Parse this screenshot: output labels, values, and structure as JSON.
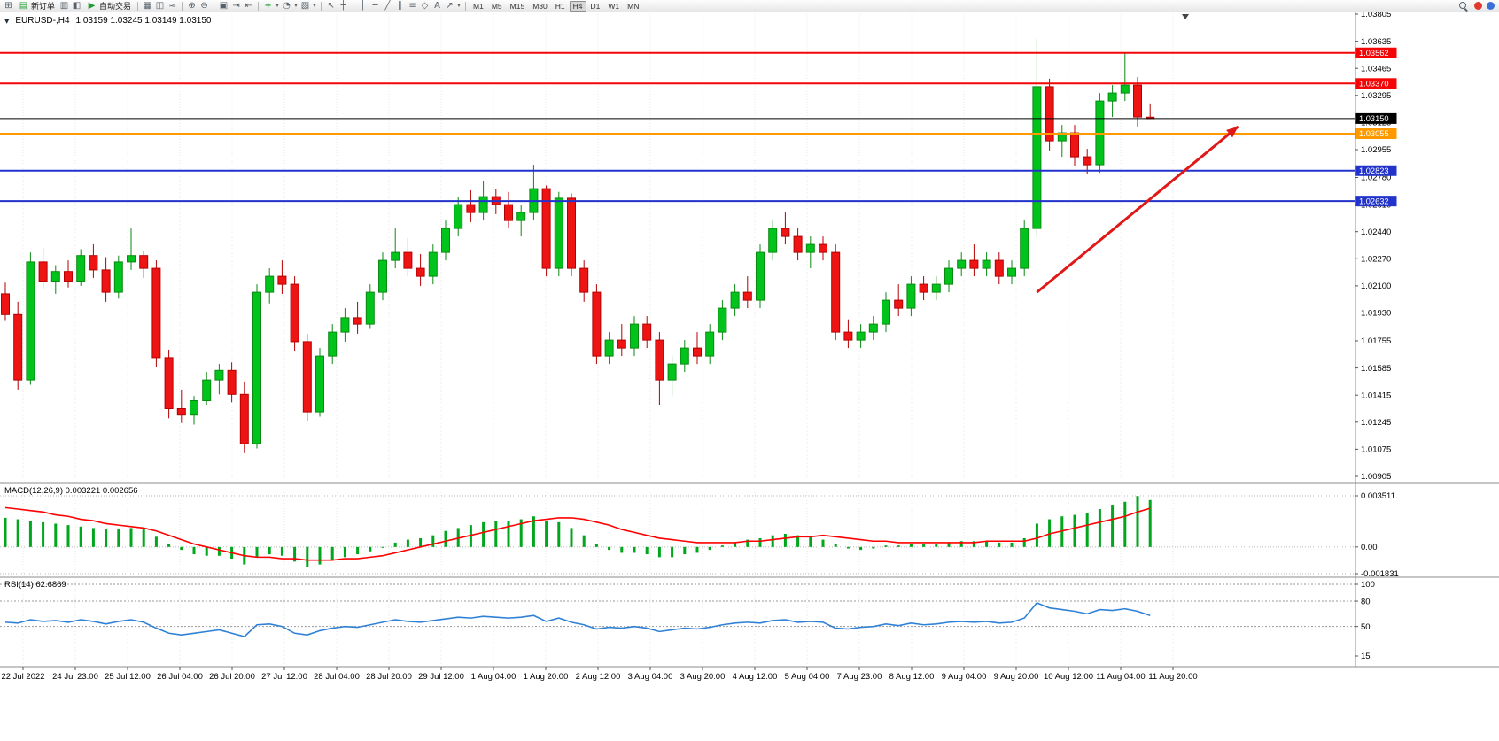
{
  "toolbar": {
    "new_order_label": "新订单",
    "autotrading_label": "自动交易",
    "timeframes": [
      "M1",
      "M5",
      "M15",
      "M30",
      "H1",
      "H4",
      "D1",
      "W1",
      "MN"
    ],
    "active_timeframe": "H4",
    "icons": {
      "new_chart": "⊞",
      "new_order": "▤",
      "market_watch": "▥",
      "navigator": "◧",
      "autotrading_play": "▶",
      "bar_chart": "▦",
      "candlestick": "◫",
      "line_chart": "≈",
      "zoom_in": "⊕",
      "zoom_out": "⊖",
      "tile_windows": "▣",
      "auto_scroll": "⇥",
      "chart_shift": "⇤",
      "indicators": "+",
      "periods": "◔",
      "templates": "▧",
      "cursor": "↖",
      "crosshair": "┼",
      "vertical_line": "│",
      "horizontal_line": "─",
      "trendline": "╱",
      "channel": "∥",
      "fibonacci": "≡",
      "shapes": "◇",
      "text": "A",
      "arrows": "↗",
      "dropdown_caret": "▾"
    }
  },
  "chart": {
    "header_caret": "▼",
    "symbol_period": "EURUSD-,H4",
    "ohlc": "1.03159 1.03245 1.03149 1.03150"
  },
  "macd_panel": {
    "label": "MACD(12,26,9) 0.003221 0.002656",
    "axis_labels": [
      "0.003511",
      "0.00",
      "-0.001831"
    ]
  },
  "rsi_panel": {
    "label": "RSI(14) 62.6869",
    "axis_labels": [
      "100",
      "80",
      "50",
      "15"
    ]
  },
  "price_lines": [
    {
      "price": 1.03562,
      "label": "1.03562",
      "color": "#f40606",
      "width": 2
    },
    {
      "price": 1.0337,
      "label": "1.03370",
      "color": "#f40606",
      "width": 2
    },
    {
      "price": 1.0315,
      "label": "1.03150",
      "color": "#000000",
      "width": 1
    },
    {
      "price": 1.03055,
      "label": "1.03055",
      "color": "#ff9900",
      "width": 2
    },
    {
      "price": 1.02823,
      "label": "1.02823",
      "color": "#2233cc",
      "width": 2
    },
    {
      "price": 1.02632,
      "label": "1.02632",
      "color": "#2233cc",
      "width": 2
    }
  ],
  "colors": {
    "candle_up": "#00c31c",
    "candle_up_border": "#0b8a12",
    "candle_down": "#ee1414",
    "candle_down_border": "#b40000",
    "macd_histogram": "#00a61c",
    "macd_signal": "#ff0000",
    "rsi_line": "#2f81d6",
    "arrow": "#e01818"
  },
  "chart_data": {
    "type": "candlestick",
    "symbol": "EURUSD-",
    "timeframe": "H4",
    "title": "EURUSD-,H4",
    "ohlc_current": {
      "open": 1.03159,
      "high": 1.03245,
      "low": 1.03149,
      "close": 1.0315
    },
    "ylim": [
      1.00905,
      1.03805
    ],
    "price_axis_labels": [
      "1.03805",
      "1.03635",
      "1.03465",
      "1.03295",
      "1.03125",
      "1.02955",
      "1.02780",
      "1.02610",
      "1.02440",
      "1.02270",
      "1.02100",
      "1.01930",
      "1.01755",
      "1.01585",
      "1.01415",
      "1.01245",
      "1.01075",
      "1.00905"
    ],
    "time_labels": [
      "22 Jul 2022",
      "24 Jul 23:00",
      "25 Jul 12:00",
      "26 Jul 04:00",
      "26 Jul 20:00",
      "27 Jul 12:00",
      "28 Jul 04:00",
      "28 Jul 20:00",
      "29 Jul 12:00",
      "1 Aug 04:00",
      "1 Aug 20:00",
      "2 Aug 12:00",
      "3 Aug 04:00",
      "3 Aug 20:00",
      "4 Aug 12:00",
      "5 Aug 04:00",
      "7 Aug 23:00",
      "8 Aug 12:00",
      "9 Aug 04:00",
      "9 Aug 20:00",
      "10 Aug 12:00",
      "11 Aug 04:00",
      "11 Aug 20:00"
    ],
    "candles": [
      [
        1.0205,
        1.0212,
        1.0188,
        1.0192
      ],
      [
        1.0192,
        1.02,
        1.0145,
        1.0151
      ],
      [
        1.0151,
        1.0231,
        1.0148,
        1.0225
      ],
      [
        1.0225,
        1.0234,
        1.0208,
        1.0213
      ],
      [
        1.0213,
        1.0223,
        1.0205,
        1.0219
      ],
      [
        1.0219,
        1.0226,
        1.0209,
        1.0213
      ],
      [
        1.0213,
        1.0233,
        1.021,
        1.0229
      ],
      [
        1.0229,
        1.0236,
        1.0215,
        1.022
      ],
      [
        1.022,
        1.0228,
        1.02,
        1.0206
      ],
      [
        1.0206,
        1.0229,
        1.0202,
        1.0225
      ],
      [
        1.0225,
        1.0246,
        1.022,
        1.0229
      ],
      [
        1.0229,
        1.0232,
        1.0215,
        1.0221
      ],
      [
        1.0221,
        1.0226,
        1.0159,
        1.0165
      ],
      [
        1.0165,
        1.017,
        1.0127,
        1.0133
      ],
      [
        1.0133,
        1.0145,
        1.0124,
        1.0129
      ],
      [
        1.0129,
        1.0141,
        1.0123,
        1.0138
      ],
      [
        1.0138,
        1.0156,
        1.0135,
        1.0151
      ],
      [
        1.0151,
        1.0161,
        1.0142,
        1.0157
      ],
      [
        1.0157,
        1.0162,
        1.0137,
        1.0142
      ],
      [
        1.0142,
        1.015,
        1.0105,
        1.0111
      ],
      [
        1.0111,
        1.0211,
        1.0108,
        1.0206
      ],
      [
        1.0206,
        1.0221,
        1.0199,
        1.0216
      ],
      [
        1.0216,
        1.0226,
        1.0205,
        1.0211
      ],
      [
        1.0211,
        1.0216,
        1.0169,
        1.0175
      ],
      [
        1.0175,
        1.018,
        1.0125,
        1.0131
      ],
      [
        1.0131,
        1.0171,
        1.0128,
        1.0166
      ],
      [
        1.0166,
        1.0186,
        1.0161,
        1.0181
      ],
      [
        1.0181,
        1.0196,
        1.0175,
        1.019
      ],
      [
        1.019,
        1.02,
        1.018,
        1.0186
      ],
      [
        1.0186,
        1.0211,
        1.0183,
        1.0206
      ],
      [
        1.0206,
        1.0231,
        1.0201,
        1.0226
      ],
      [
        1.0226,
        1.0246,
        1.0221,
        1.0231
      ],
      [
        1.0231,
        1.024,
        1.0216,
        1.0221
      ],
      [
        1.0221,
        1.023,
        1.021,
        1.0216
      ],
      [
        1.0216,
        1.0236,
        1.0211,
        1.0231
      ],
      [
        1.0231,
        1.0251,
        1.0226,
        1.0246
      ],
      [
        1.0246,
        1.0266,
        1.0241,
        1.0261
      ],
      [
        1.0261,
        1.027,
        1.025,
        1.0256
      ],
      [
        1.0256,
        1.0276,
        1.0251,
        1.0266
      ],
      [
        1.0266,
        1.0271,
        1.0255,
        1.0261
      ],
      [
        1.0261,
        1.0269,
        1.0246,
        1.0251
      ],
      [
        1.0251,
        1.0261,
        1.0241,
        1.0256
      ],
      [
        1.0256,
        1.0286,
        1.0251,
        1.0271
      ],
      [
        1.0271,
        1.0273,
        1.0216,
        1.0221
      ],
      [
        1.0221,
        1.0269,
        1.0216,
        1.0265
      ],
      [
        1.0265,
        1.0268,
        1.0216,
        1.0221
      ],
      [
        1.0221,
        1.0226,
        1.02,
        1.0206
      ],
      [
        1.0206,
        1.0211,
        1.0161,
        1.0166
      ],
      [
        1.0166,
        1.0181,
        1.0161,
        1.0176
      ],
      [
        1.0176,
        1.0186,
        1.0166,
        1.0171
      ],
      [
        1.0171,
        1.0191,
        1.0166,
        1.0186
      ],
      [
        1.0186,
        1.0191,
        1.0171,
        1.0176
      ],
      [
        1.0176,
        1.0181,
        1.0135,
        1.0151
      ],
      [
        1.0151,
        1.0166,
        1.0141,
        1.0161
      ],
      [
        1.0161,
        1.0176,
        1.0156,
        1.0171
      ],
      [
        1.0171,
        1.0181,
        1.0161,
        1.0166
      ],
      [
        1.0166,
        1.0186,
        1.0161,
        1.0181
      ],
      [
        1.0181,
        1.0201,
        1.0176,
        1.0196
      ],
      [
        1.0196,
        1.0211,
        1.0191,
        1.0206
      ],
      [
        1.0206,
        1.0216,
        1.0196,
        1.0201
      ],
      [
        1.0201,
        1.0236,
        1.0196,
        1.0231
      ],
      [
        1.0231,
        1.0251,
        1.0226,
        1.0246
      ],
      [
        1.0246,
        1.0256,
        1.0236,
        1.0241
      ],
      [
        1.0241,
        1.0246,
        1.0226,
        1.0231
      ],
      [
        1.0231,
        1.0241,
        1.0221,
        1.0236
      ],
      [
        1.0236,
        1.0241,
        1.0226,
        1.0231
      ],
      [
        1.0231,
        1.0236,
        1.0176,
        1.0181
      ],
      [
        1.0181,
        1.0189,
        1.0171,
        1.0176
      ],
      [
        1.0176,
        1.0186,
        1.0171,
        1.0181
      ],
      [
        1.0181,
        1.0191,
        1.0176,
        1.0186
      ],
      [
        1.0186,
        1.0206,
        1.0181,
        1.0201
      ],
      [
        1.0201,
        1.0211,
        1.0191,
        1.0196
      ],
      [
        1.0196,
        1.0216,
        1.0191,
        1.0211
      ],
      [
        1.0211,
        1.0216,
        1.0201,
        1.0206
      ],
      [
        1.0206,
        1.0216,
        1.0201,
        1.0211
      ],
      [
        1.0211,
        1.0226,
        1.0206,
        1.0221
      ],
      [
        1.0221,
        1.0231,
        1.0216,
        1.0226
      ],
      [
        1.0226,
        1.0236,
        1.0216,
        1.0221
      ],
      [
        1.0221,
        1.0231,
        1.0216,
        1.0226
      ],
      [
        1.0226,
        1.0231,
        1.0211,
        1.0216
      ],
      [
        1.0216,
        1.0226,
        1.0211,
        1.0221
      ],
      [
        1.0221,
        1.0251,
        1.0216,
        1.0246
      ],
      [
        1.0246,
        1.0365,
        1.0241,
        1.0335
      ],
      [
        1.0335,
        1.034,
        1.0295,
        1.0301
      ],
      [
        1.0301,
        1.0311,
        1.0291,
        1.0306
      ],
      [
        1.0306,
        1.0311,
        1.0285,
        1.0291
      ],
      [
        1.0291,
        1.0296,
        1.028,
        1.0286
      ],
      [
        1.0286,
        1.0331,
        1.0281,
        1.0326
      ],
      [
        1.0326,
        1.0336,
        1.0316,
        1.0331
      ],
      [
        1.0331,
        1.0356,
        1.0326,
        1.0336
      ],
      [
        1.0336,
        1.0341,
        1.031,
        1.0316
      ],
      [
        1.03159,
        1.03245,
        1.03149,
        1.0315
      ]
    ],
    "macd": {
      "params": "12,26,9",
      "value": 0.003221,
      "signal_value": 0.002656,
      "scale_max": 0.003511,
      "scale_min": -0.001831,
      "histogram": [
        0.002,
        0.0019,
        0.0018,
        0.0017,
        0.0016,
        0.0015,
        0.0014,
        0.0013,
        0.0012,
        0.0012,
        0.0013,
        0.0012,
        0.0007,
        0.0002,
        -0.0002,
        -0.0005,
        -0.0006,
        -0.0006,
        -0.0008,
        -0.0012,
        -0.0007,
        -0.0005,
        -0.0006,
        -0.001,
        -0.0014,
        -0.0012,
        -0.0009,
        -0.0007,
        -0.0005,
        -0.0003,
        0.0,
        0.0003,
        0.0005,
        0.0006,
        0.0008,
        0.0011,
        0.0013,
        0.0015,
        0.0017,
        0.0018,
        0.0018,
        0.0019,
        0.0021,
        0.0018,
        0.0017,
        0.0013,
        0.0008,
        0.0002,
        -0.0002,
        -0.0004,
        -0.0004,
        -0.0005,
        -0.0007,
        -0.0007,
        -0.0005,
        -0.0004,
        -0.0002,
        0.0001,
        0.0003,
        0.0005,
        0.0006,
        0.0008,
        0.0009,
        0.0008,
        0.0007,
        0.0005,
        0.0002,
        -0.0001,
        -0.0002,
        -0.0001,
        0.0001,
        0.0001,
        0.0002,
        0.0002,
        0.0002,
        0.0003,
        0.0004,
        0.0004,
        0.0004,
        0.0003,
        0.0003,
        0.0006,
        0.0016,
        0.0019,
        0.0021,
        0.0022,
        0.0023,
        0.0026,
        0.0029,
        0.0031,
        0.0035,
        0.003221
      ],
      "signal": [
        0.0027,
        0.0026,
        0.0025,
        0.0024,
        0.0022,
        0.0021,
        0.0019,
        0.0018,
        0.0016,
        0.0015,
        0.0014,
        0.0013,
        0.0011,
        0.0008,
        0.0005,
        0.0002,
        0.0,
        -0.0002,
        -0.0004,
        -0.0006,
        -0.0007,
        -0.0007,
        -0.0008,
        -0.0008,
        -0.0009,
        -0.0009,
        -0.0009,
        -0.0008,
        -0.0008,
        -0.0007,
        -0.0006,
        -0.0004,
        -0.0002,
        0.0,
        0.0002,
        0.0004,
        0.0006,
        0.0008,
        0.001,
        0.0012,
        0.0014,
        0.0016,
        0.0018,
        0.0019,
        0.002,
        0.002,
        0.0019,
        0.0017,
        0.0015,
        0.0012,
        0.001,
        0.0008,
        0.0006,
        0.0005,
        0.0004,
        0.0003,
        0.0003,
        0.0003,
        0.0003,
        0.0004,
        0.0004,
        0.0005,
        0.0006,
        0.0007,
        0.0007,
        0.0008,
        0.0007,
        0.0006,
        0.0005,
        0.0004,
        0.0004,
        0.0003,
        0.0003,
        0.0003,
        0.0003,
        0.0003,
        0.0003,
        0.0003,
        0.0004,
        0.0004,
        0.0004,
        0.0004,
        0.0006,
        0.0009,
        0.0011,
        0.0013,
        0.0015,
        0.0017,
        0.0019,
        0.0021,
        0.0024,
        0.002656
      ]
    },
    "rsi": {
      "period": 14,
      "value": 62.6869,
      "levels": [
        100,
        80,
        50,
        15
      ],
      "values": [
        55,
        54,
        58,
        56,
        57,
        55,
        58,
        56,
        53,
        56,
        58,
        55,
        48,
        42,
        40,
        42,
        44,
        46,
        42,
        38,
        52,
        53,
        50,
        42,
        40,
        45,
        48,
        50,
        49,
        52,
        55,
        58,
        56,
        55,
        57,
        59,
        61,
        60,
        62,
        61,
        60,
        61,
        63,
        56,
        60,
        55,
        52,
        47,
        49,
        48,
        50,
        48,
        44,
        46,
        48,
        47,
        49,
        52,
        54,
        55,
        54,
        57,
        58,
        55,
        56,
        55,
        48,
        47,
        49,
        50,
        53,
        51,
        54,
        52,
        53,
        55,
        56,
        55,
        56,
        54,
        55,
        60,
        78,
        72,
        70,
        68,
        65,
        70,
        69,
        71,
        68,
        63
      ]
    },
    "trend_arrow": {
      "from_bar": 82,
      "from_price": 1.0206,
      "to_bar": 98,
      "to_price": 1.031
    }
  }
}
